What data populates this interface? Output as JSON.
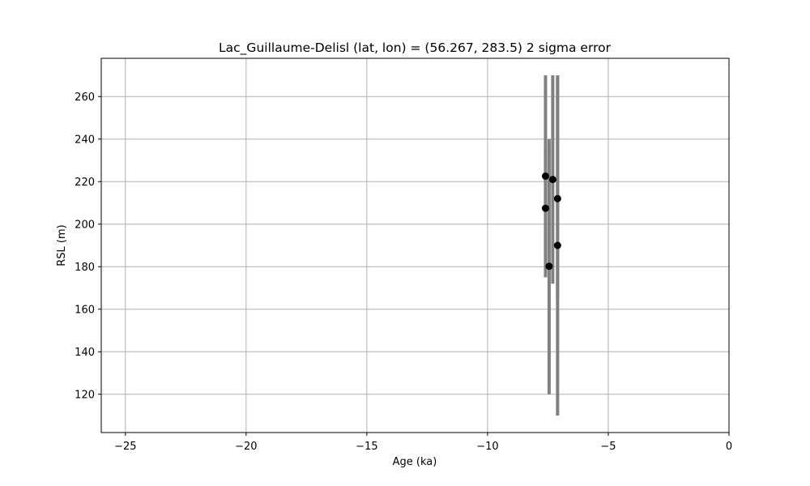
{
  "chart_data": {
    "type": "scatter",
    "title": "Lac_Guillaume-Delisl (lat, lon) = (56.267, 283.5)  2 sigma error",
    "xlabel": "Age (ka)",
    "ylabel": "RSL (m)",
    "xlim": [
      -26,
      0
    ],
    "ylim": [
      102,
      278
    ],
    "xticks": [
      -25,
      -20,
      -15,
      -10,
      -5,
      0
    ],
    "xtick_labels": [
      "−25",
      "−20",
      "−15",
      "−10",
      "−5",
      "0"
    ],
    "yticks": [
      120,
      140,
      160,
      180,
      200,
      220,
      240,
      260
    ],
    "ytick_labels": [
      "120",
      "140",
      "160",
      "180",
      "200",
      "220",
      "240",
      "260"
    ],
    "grid": true,
    "colors": {
      "point": "#000000",
      "errorbar": "#808080",
      "grid": "#b0b0b0"
    },
    "points": [
      {
        "x": -7.6,
        "y": 222.6,
        "ylow": 175,
        "yhigh": 270
      },
      {
        "x": -7.6,
        "y": 207.5,
        "ylow": 183,
        "yhigh": 235
      },
      {
        "x": -7.45,
        "y": 180.2,
        "ylow": 120,
        "yhigh": 240
      },
      {
        "x": -7.3,
        "y": 221.0,
        "ylow": 172,
        "yhigh": 270
      },
      {
        "x": -7.1,
        "y": 212.0,
        "ylow": 165,
        "yhigh": 270
      },
      {
        "x": -7.1,
        "y": 190.0,
        "ylow": 110,
        "yhigh": 270
      }
    ]
  }
}
